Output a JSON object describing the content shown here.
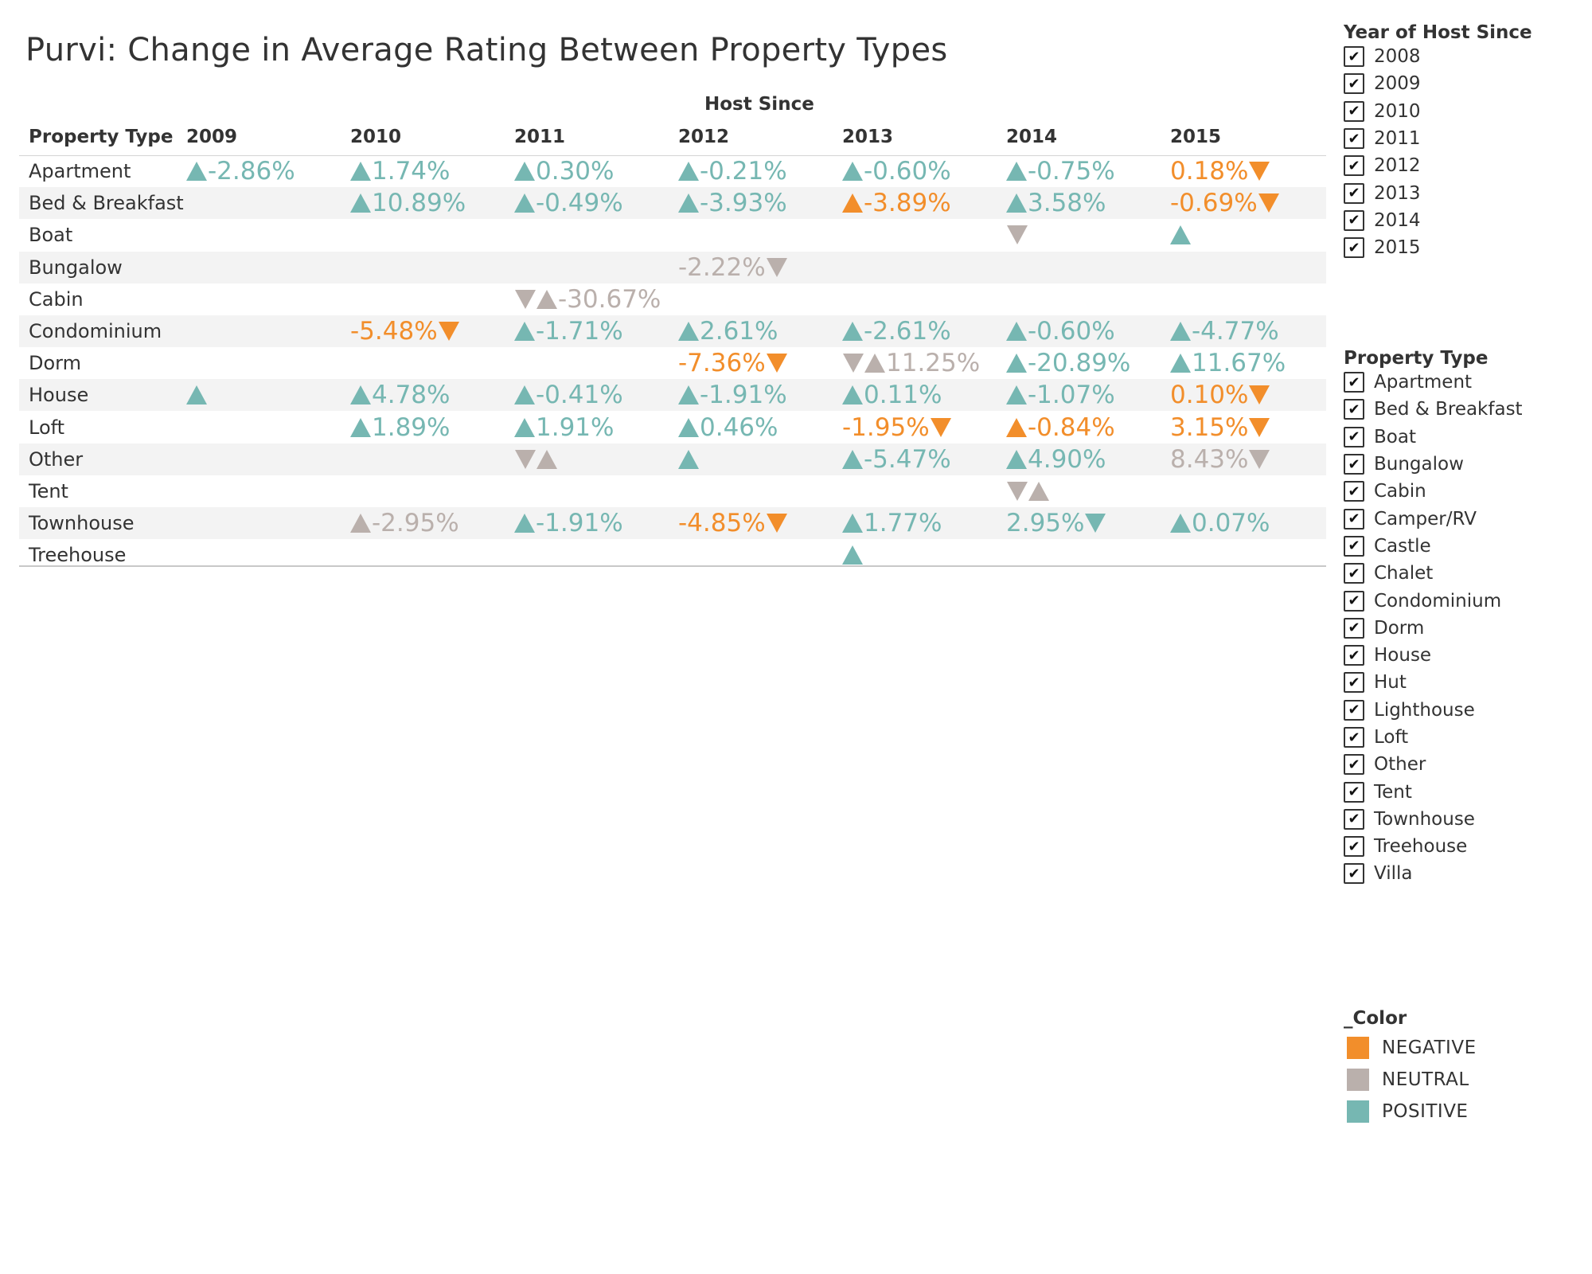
{
  "title": "Purvi: Change in Average Rating Between Property Types",
  "column_group_label": "Host Since",
  "row_header": "Property Type",
  "years": [
    "2009",
    "2010",
    "2011",
    "2012",
    "2013",
    "2014",
    "2015"
  ],
  "colors": {
    "NEGATIVE": "#f28e2b",
    "NEUTRAL": "#bab0ac",
    "POSITIVE": "#76b7b2"
  },
  "rows": [
    {
      "label": "Apartment",
      "cells": [
        {
          "text": "-2.86%",
          "pre": "up",
          "color": "POSITIVE"
        },
        {
          "text": "1.74%",
          "pre": "up",
          "color": "POSITIVE"
        },
        {
          "text": "0.30%",
          "pre": "up",
          "color": "POSITIVE"
        },
        {
          "text": "-0.21%",
          "pre": "up",
          "color": "POSITIVE"
        },
        {
          "text": "-0.60%",
          "pre": "up",
          "color": "POSITIVE"
        },
        {
          "text": "-0.75%",
          "pre": "up",
          "color": "POSITIVE"
        },
        {
          "text": "0.18%",
          "post": "down",
          "color": "NEGATIVE"
        }
      ]
    },
    {
      "label": "Bed & Breakfast",
      "cells": [
        null,
        {
          "text": "10.89%",
          "pre": "up",
          "color": "POSITIVE"
        },
        {
          "text": "-0.49%",
          "pre": "up",
          "color": "POSITIVE"
        },
        {
          "text": "-3.93%",
          "pre": "up",
          "color": "POSITIVE"
        },
        {
          "text": "-3.89%",
          "pre": "up",
          "color": "NEGATIVE"
        },
        {
          "text": "3.58%",
          "pre": "up",
          "color": "POSITIVE"
        },
        {
          "text": "-0.69%",
          "post": "down",
          "color": "NEGATIVE"
        }
      ]
    },
    {
      "label": "Boat",
      "cells": [
        null,
        null,
        null,
        null,
        null,
        {
          "text": "",
          "pre": "down",
          "color": "NEUTRAL"
        },
        {
          "text": "",
          "pre": "up",
          "color": "POSITIVE"
        }
      ]
    },
    {
      "label": "Bungalow",
      "cells": [
        null,
        null,
        null,
        {
          "text": "-2.22%",
          "post": "down",
          "color": "NEUTRAL"
        },
        null,
        null,
        null
      ]
    },
    {
      "label": "Cabin",
      "cells": [
        null,
        null,
        {
          "text": "-30.67%",
          "pre": "downup",
          "color": "NEUTRAL"
        },
        null,
        null,
        null,
        null
      ]
    },
    {
      "label": "Condominium",
      "cells": [
        null,
        {
          "text": "-5.48%",
          "post": "down",
          "color": "NEGATIVE"
        },
        {
          "text": "-1.71%",
          "pre": "up",
          "color": "POSITIVE"
        },
        {
          "text": "2.61%",
          "pre": "up",
          "color": "POSITIVE"
        },
        {
          "text": "-2.61%",
          "pre": "up",
          "color": "POSITIVE"
        },
        {
          "text": "-0.60%",
          "pre": "up",
          "color": "POSITIVE"
        },
        {
          "text": "-4.77%",
          "pre": "up",
          "color": "POSITIVE"
        }
      ]
    },
    {
      "label": "Dorm",
      "cells": [
        null,
        null,
        null,
        {
          "text": "-7.36%",
          "post": "down",
          "color": "NEGATIVE"
        },
        {
          "text": "11.25%",
          "pre": "downup",
          "color": "NEUTRAL"
        },
        {
          "text": "-20.89%",
          "pre": "up",
          "color": "POSITIVE"
        },
        {
          "text": "11.67%",
          "pre": "up",
          "color": "POSITIVE"
        }
      ]
    },
    {
      "label": "House",
      "cells": [
        {
          "text": "",
          "pre": "up",
          "color": "POSITIVE"
        },
        {
          "text": "4.78%",
          "pre": "up",
          "color": "POSITIVE"
        },
        {
          "text": "-0.41%",
          "pre": "up",
          "color": "POSITIVE"
        },
        {
          "text": "-1.91%",
          "pre": "up",
          "color": "POSITIVE"
        },
        {
          "text": "0.11%",
          "pre": "up",
          "color": "POSITIVE"
        },
        {
          "text": "-1.07%",
          "pre": "up",
          "color": "POSITIVE"
        },
        {
          "text": "0.10%",
          "post": "down",
          "color": "NEGATIVE"
        }
      ]
    },
    {
      "label": "Loft",
      "cells": [
        null,
        {
          "text": "1.89%",
          "pre": "up",
          "color": "POSITIVE"
        },
        {
          "text": "1.91%",
          "pre": "up",
          "color": "POSITIVE"
        },
        {
          "text": "0.46%",
          "pre": "up",
          "color": "POSITIVE"
        },
        {
          "text": "-1.95%",
          "post": "down",
          "color": "NEGATIVE"
        },
        {
          "text": "-0.84%",
          "pre": "up",
          "color": "NEGATIVE"
        },
        {
          "text": "3.15%",
          "post": "down",
          "color": "NEGATIVE"
        }
      ]
    },
    {
      "label": "Other",
      "cells": [
        null,
        null,
        {
          "text": "",
          "pre": "downup",
          "color": "NEUTRAL"
        },
        {
          "text": "",
          "pre": "up",
          "color": "POSITIVE"
        },
        {
          "text": "-5.47%",
          "pre": "up",
          "color": "POSITIVE"
        },
        {
          "text": "4.90%",
          "pre": "up",
          "color": "POSITIVE"
        },
        {
          "text": "8.43%",
          "post": "down",
          "color": "NEUTRAL"
        }
      ]
    },
    {
      "label": "Tent",
      "cells": [
        null,
        null,
        null,
        null,
        null,
        {
          "text": "",
          "pre": "downup",
          "color": "NEUTRAL"
        },
        null
      ]
    },
    {
      "label": "Townhouse",
      "cells": [
        null,
        {
          "text": "-2.95%",
          "pre": "up",
          "color": "NEUTRAL"
        },
        {
          "text": "-1.91%",
          "pre": "up",
          "color": "POSITIVE"
        },
        {
          "text": "-4.85%",
          "post": "down",
          "color": "NEGATIVE"
        },
        {
          "text": "1.77%",
          "pre": "up",
          "color": "POSITIVE"
        },
        {
          "text": "2.95%",
          "post": "down",
          "color": "POSITIVE"
        },
        {
          "text": "0.07%",
          "pre": "up",
          "color": "POSITIVE"
        }
      ]
    },
    {
      "label": "Treehouse",
      "cells": [
        null,
        null,
        null,
        null,
        {
          "text": "",
          "pre": "up",
          "color": "POSITIVE"
        },
        null,
        null
      ]
    }
  ],
  "filters": {
    "year": {
      "title": "Year of Host Since",
      "items": [
        "2008",
        "2009",
        "2010",
        "2011",
        "2012",
        "2013",
        "2014",
        "2015"
      ]
    },
    "property_type": {
      "title": "Property Type",
      "items": [
        "Apartment",
        "Bed & Breakfast",
        "Boat",
        "Bungalow",
        "Cabin",
        "Camper/RV",
        "Castle",
        "Chalet",
        "Condominium",
        "Dorm",
        "House",
        "Hut",
        "Lighthouse",
        "Loft",
        "Other",
        "Tent",
        "Townhouse",
        "Treehouse",
        "Villa"
      ]
    },
    "checkmark": "✔"
  },
  "color_legend": {
    "title": "_Color",
    "items": [
      "NEGATIVE",
      "NEUTRAL",
      "POSITIVE"
    ]
  }
}
